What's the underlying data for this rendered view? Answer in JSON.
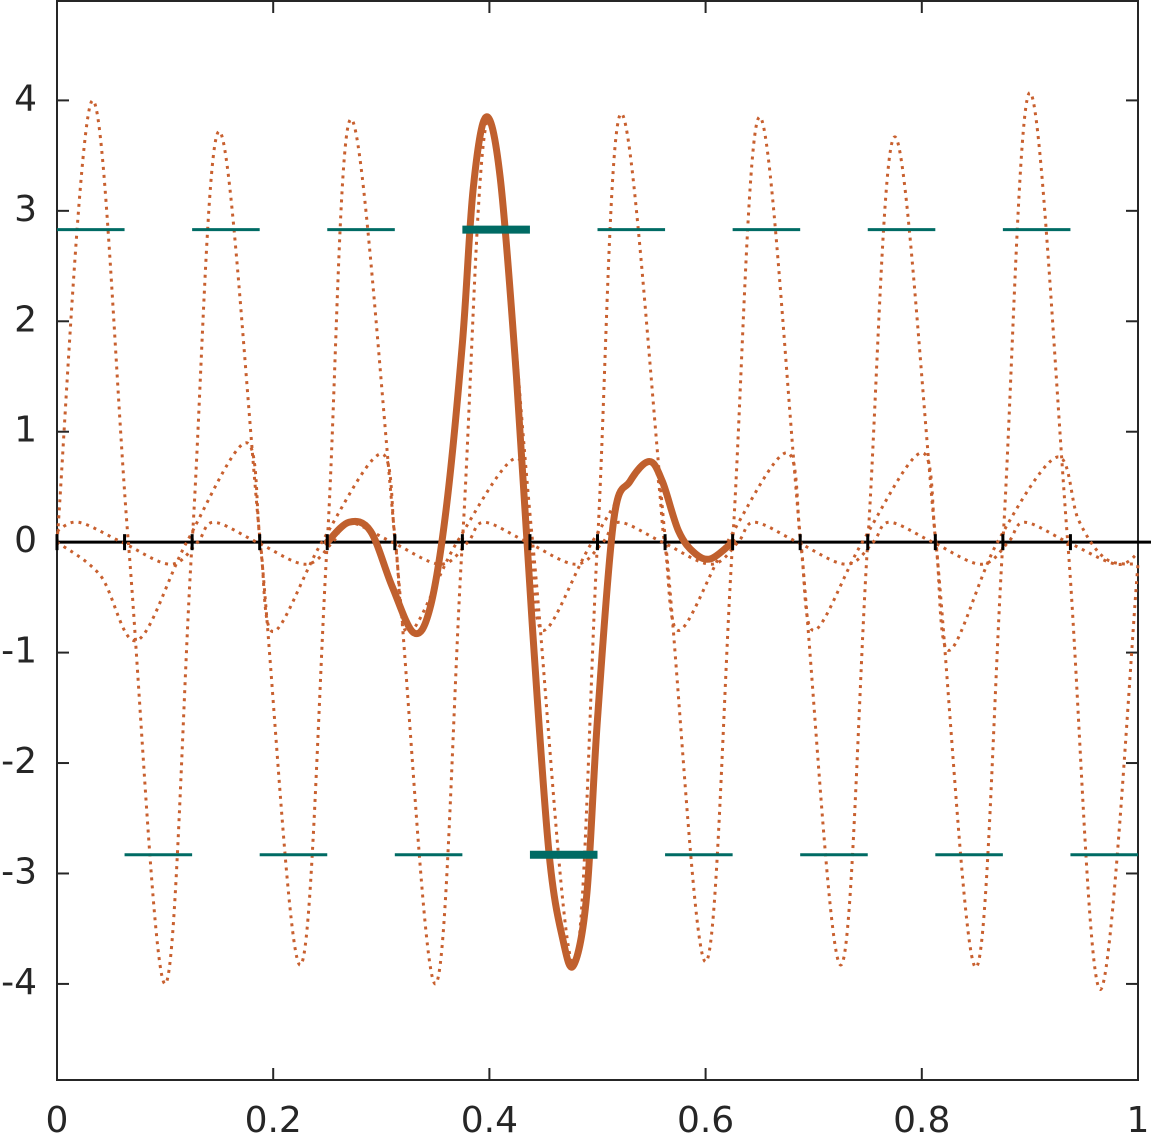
{
  "chart_data": {
    "type": "line",
    "xlim": [
      0,
      1
    ],
    "xticks": [
      0,
      0.2,
      0.4,
      0.6,
      0.8,
      1
    ],
    "ylim": [
      -4.87,
      4.9
    ],
    "yticks": [
      -4,
      -3,
      -2,
      -1,
      0,
      1,
      2,
      3,
      4
    ],
    "series": [
      {
        "style": "dotted",
        "color": "#c8602f",
        "width": 3,
        "x": [
          0,
          0.033,
          0.066,
          0.1,
          0.125,
          0.15,
          0.188,
          0.225,
          0.25,
          0.272,
          0.313,
          0.35,
          0.375,
          0.4,
          0.44,
          0.478,
          0.5,
          0.522,
          0.563,
          0.6,
          0.625,
          0.65,
          0.688,
          0.725,
          0.75,
          0.775,
          0.813,
          0.85,
          0.875,
          0.9,
          0.935,
          0.965,
          1
        ],
        "values": [
          0,
          4.0,
          0,
          -4.0,
          0,
          3.72,
          0,
          -3.83,
          0,
          3.83,
          0,
          -4.0,
          0,
          3.85,
          0,
          -3.83,
          0,
          3.88,
          0,
          -3.8,
          0,
          3.85,
          0,
          -3.83,
          0,
          3.67,
          0,
          -3.85,
          0,
          4.07,
          0,
          -4.05,
          -0.2
        ]
      },
      {
        "style": "dotted",
        "color": "#c8602f",
        "width": 3,
        "x": [
          0,
          0.04,
          0.074,
          0.12,
          0.175,
          0.188,
          0.2,
          0.245,
          0.3,
          0.313,
          0.325,
          0.37,
          0.425,
          0.438,
          0.45,
          0.495,
          0.548,
          0.562,
          0.575,
          0.62,
          0.675,
          0.688,
          0.7,
          0.745,
          0.8,
          0.813,
          0.825,
          0.87,
          0.925,
          0.945,
          0.97,
          1
        ],
        "values": [
          0,
          -0.3,
          -0.89,
          0,
          0.9,
          0,
          -0.81,
          0,
          0.8,
          0,
          -0.82,
          0,
          0.76,
          0,
          -0.8,
          0,
          0.73,
          0,
          -0.8,
          0,
          0.81,
          0,
          -0.8,
          0,
          0.81,
          0,
          -0.98,
          0,
          0.77,
          0.2,
          -0.15,
          -0.2
        ]
      },
      {
        "style": "dotted",
        "color": "#c8602f",
        "width": 3,
        "x": [
          0,
          0.02,
          0.06,
          0.105,
          0.13,
          0.145,
          0.185,
          0.23,
          0.255,
          0.27,
          0.31,
          0.355,
          0.38,
          0.395,
          0.435,
          0.48,
          0.505,
          0.52,
          0.56,
          0.605,
          0.63,
          0.645,
          0.685,
          0.73,
          0.755,
          0.77,
          0.81,
          0.855,
          0.88,
          0.895,
          0.935,
          0.98,
          1
        ],
        "values": [
          0.1,
          0.18,
          0,
          -0.2,
          0,
          0.18,
          0,
          -0.2,
          0,
          0.18,
          0,
          -0.2,
          0,
          0.18,
          0,
          -0.2,
          0,
          0.18,
          0,
          -0.2,
          0,
          0.18,
          0,
          -0.2,
          0,
          0.18,
          0,
          -0.2,
          0,
          0.18,
          0,
          -0.2,
          -0.1
        ]
      },
      {
        "style": "solid",
        "color": "#c0602e",
        "width": 7,
        "x": [
          0.25,
          0.27,
          0.29,
          0.31,
          0.33,
          0.345,
          0.36,
          0.375,
          0.385,
          0.397,
          0.41,
          0.425,
          0.44,
          0.455,
          0.468,
          0.478,
          0.49,
          0.5,
          0.515,
          0.53,
          0.548,
          0.56,
          0.575,
          0.59,
          0.605,
          0.625
        ],
        "values": [
          0,
          0.18,
          0.1,
          -0.4,
          -0.82,
          -0.6,
          0.3,
          1.8,
          3.2,
          3.85,
          3.3,
          1.5,
          -0.8,
          -2.8,
          -3.6,
          -3.83,
          -3.2,
          -1.6,
          0.2,
          0.55,
          0.73,
          0.55,
          0.1,
          -0.1,
          -0.15,
          0
        ]
      },
      {
        "style": "segments",
        "color": "#006b64",
        "width": 3,
        "x": [
          [
            0,
            0.0625
          ],
          [
            0.0625,
            0.125
          ],
          [
            0.125,
            0.1875
          ],
          [
            0.1875,
            0.25
          ],
          [
            0.25,
            0.3125
          ],
          [
            0.3125,
            0.375
          ],
          [
            0.5,
            0.5625
          ],
          [
            0.5625,
            0.625
          ],
          [
            0.625,
            0.6875
          ],
          [
            0.6875,
            0.75
          ],
          [
            0.75,
            0.8125
          ],
          [
            0.8125,
            0.875
          ],
          [
            0.875,
            0.9375
          ],
          [
            0.9375,
            1
          ]
        ],
        "values": [
          2.83,
          -2.83,
          2.83,
          -2.83,
          2.83,
          -2.83,
          2.83,
          -2.83,
          2.83,
          -2.83,
          2.83,
          -2.83,
          2.83,
          -2.83
        ]
      },
      {
        "style": "segments",
        "color": "#006b64",
        "width": 8,
        "x": [
          [
            0.375,
            0.4375
          ],
          [
            0.4375,
            0.5
          ]
        ],
        "values": [
          2.83,
          -2.83
        ]
      }
    ]
  }
}
